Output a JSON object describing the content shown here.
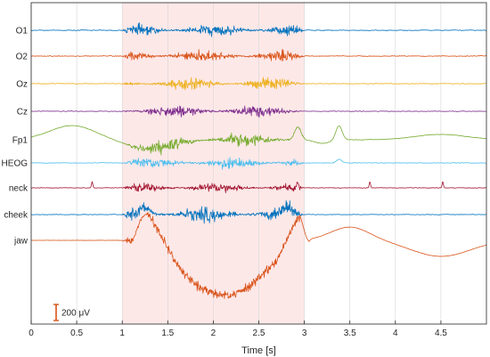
{
  "chart_data": {
    "type": "line",
    "title": "",
    "xlabel": "Time [s]",
    "ylabel": "",
    "xlim": [
      0,
      5
    ],
    "x_ticks": [
      "0",
      "0.5",
      "1",
      "1.5",
      "2",
      "2.5",
      "3",
      "3.5",
      "4",
      "4.5"
    ],
    "x_tick_values": [
      0,
      0.5,
      1,
      1.5,
      2,
      2.5,
      3,
      3.5,
      4,
      4.5
    ],
    "grid": true,
    "highlight": {
      "x_start": 1,
      "x_end": 3,
      "color": "#fde8e8"
    },
    "scale_bar": {
      "value_uv": 200,
      "label": "200 μV",
      "color": "#d95319"
    },
    "series": [
      {
        "name": "O1",
        "color": "#0072bd",
        "burst_amplitude_uv": 55,
        "baseline_noise_uv": 8
      },
      {
        "name": "O2",
        "color": "#d95319",
        "burst_amplitude_uv": 55,
        "baseline_noise_uv": 8
      },
      {
        "name": "Oz",
        "color": "#edb120",
        "burst_amplitude_uv": 55,
        "baseline_noise_uv": 8
      },
      {
        "name": "Cz",
        "color": "#7e2f8e",
        "burst_amplitude_uv": 60,
        "baseline_noise_uv": 7
      },
      {
        "name": "Fp1",
        "color": "#77ac30",
        "burst_amplitude_uv": 70,
        "baseline_noise_uv": 5
      },
      {
        "name": "HEOG",
        "color": "#4dbeee",
        "burst_amplitude_uv": 55,
        "baseline_noise_uv": 7
      },
      {
        "name": "neck",
        "color": "#a2142f",
        "burst_amplitude_uv": 45,
        "baseline_noise_uv": 6
      },
      {
        "name": "cheek",
        "color": "#0072bd",
        "burst_amplitude_uv": 75,
        "baseline_noise_uv": 6
      },
      {
        "name": "jaw",
        "color": "#d95319",
        "burst_amplitude_uv": 90,
        "baseline_noise_uv": 3
      }
    ]
  }
}
